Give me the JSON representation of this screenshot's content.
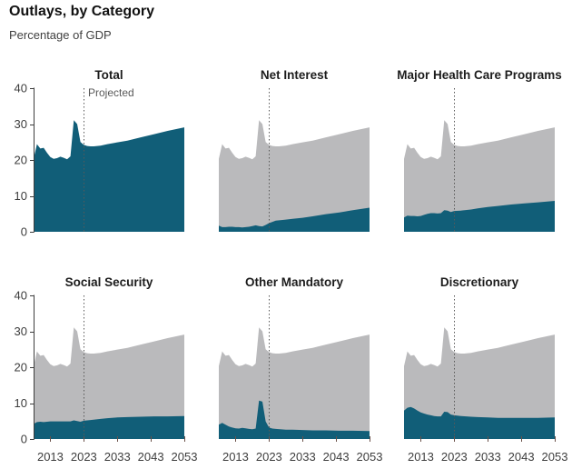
{
  "header": {
    "title": "Outlays, by Category",
    "subtitle": "Percentage of GDP"
  },
  "colors": {
    "category_area": "#115E78",
    "total_area": "#BABABC",
    "axis": "#3D3D3D",
    "tick_label": "#3D3D3D",
    "x_tick": "#6A5048",
    "dotted_line": "#595959",
    "panel_title": "#1C1C1C",
    "projected_label": "#595959",
    "page_title": "#111111",
    "subtitle": "#404040",
    "background": "#FFFFFF"
  },
  "chart_data": {
    "type": "area",
    "title": "Outlays, by Category",
    "ylabel": "Percentage of GDP",
    "x_range": [
      2008,
      2053
    ],
    "y_range": [
      0,
      40
    ],
    "x_ticks": [
      2013,
      2023,
      2033,
      2043,
      2053
    ],
    "y_ticks": [
      0,
      10,
      20,
      30,
      40
    ],
    "grid": false,
    "projected_year": 2023,
    "projected_label": "Projected",
    "total_outlays_points": [
      [
        2008,
        20.3
      ],
      [
        2009,
        24.4
      ],
      [
        2010,
        23.2
      ],
      [
        2011,
        23.4
      ],
      [
        2012,
        22.0
      ],
      [
        2013,
        20.8
      ],
      [
        2014,
        20.3
      ],
      [
        2015,
        20.5
      ],
      [
        2016,
        20.9
      ],
      [
        2017,
        20.6
      ],
      [
        2018,
        20.2
      ],
      [
        2019,
        21.0
      ],
      [
        2020,
        31.1
      ],
      [
        2021,
        30.0
      ],
      [
        2022,
        25.0
      ],
      [
        2023,
        24.2
      ],
      [
        2024,
        23.9
      ],
      [
        2025,
        23.8
      ],
      [
        2026,
        23.8
      ],
      [
        2028,
        24.0
      ],
      [
        2030,
        24.4
      ],
      [
        2033,
        24.9
      ],
      [
        2036,
        25.4
      ],
      [
        2040,
        26.3
      ],
      [
        2044,
        27.2
      ],
      [
        2048,
        28.1
      ],
      [
        2053,
        29.1
      ]
    ],
    "panels": [
      {
        "title": "Total",
        "category": "total",
        "show_y_axis": true,
        "show_x_labels": false,
        "show_total_background": false
      },
      {
        "title": "Net Interest",
        "category": "net_interest",
        "show_y_axis": false,
        "show_x_labels": false,
        "show_total_background": true,
        "category_points": [
          [
            2008,
            1.7
          ],
          [
            2009,
            1.3
          ],
          [
            2010,
            1.3
          ],
          [
            2011,
            1.4
          ],
          [
            2012,
            1.4
          ],
          [
            2013,
            1.3
          ],
          [
            2014,
            1.3
          ],
          [
            2015,
            1.2
          ],
          [
            2016,
            1.3
          ],
          [
            2017,
            1.4
          ],
          [
            2018,
            1.6
          ],
          [
            2019,
            1.8
          ],
          [
            2020,
            1.6
          ],
          [
            2021,
            1.5
          ],
          [
            2022,
            1.9
          ],
          [
            2023,
            2.4
          ],
          [
            2025,
            3.1
          ],
          [
            2028,
            3.4
          ],
          [
            2030,
            3.6
          ],
          [
            2033,
            3.9
          ],
          [
            2036,
            4.3
          ],
          [
            2040,
            4.9
          ],
          [
            2044,
            5.4
          ],
          [
            2048,
            6.0
          ],
          [
            2053,
            6.7
          ]
        ]
      },
      {
        "title": "Major Health Care Programs",
        "category": "major_health_care_programs",
        "show_y_axis": false,
        "show_x_labels": false,
        "show_total_background": true,
        "category_points": [
          [
            2008,
            4.0
          ],
          [
            2009,
            4.5
          ],
          [
            2010,
            4.4
          ],
          [
            2011,
            4.4
          ],
          [
            2012,
            4.3
          ],
          [
            2013,
            4.4
          ],
          [
            2014,
            4.7
          ],
          [
            2015,
            5.0
          ],
          [
            2016,
            5.2
          ],
          [
            2017,
            5.2
          ],
          [
            2018,
            5.1
          ],
          [
            2019,
            5.2
          ],
          [
            2020,
            6.0
          ],
          [
            2021,
            5.9
          ],
          [
            2022,
            5.5
          ],
          [
            2023,
            5.8
          ],
          [
            2025,
            5.9
          ],
          [
            2028,
            6.2
          ],
          [
            2030,
            6.5
          ],
          [
            2033,
            6.9
          ],
          [
            2036,
            7.2
          ],
          [
            2040,
            7.6
          ],
          [
            2044,
            7.9
          ],
          [
            2048,
            8.2
          ],
          [
            2053,
            8.6
          ]
        ]
      },
      {
        "title": "Social Security",
        "category": "social_security",
        "show_y_axis": true,
        "show_x_labels": true,
        "show_total_background": true,
        "category_points": [
          [
            2008,
            4.2
          ],
          [
            2009,
            4.7
          ],
          [
            2010,
            4.8
          ],
          [
            2011,
            4.7
          ],
          [
            2012,
            4.8
          ],
          [
            2013,
            4.9
          ],
          [
            2014,
            4.9
          ],
          [
            2015,
            4.9
          ],
          [
            2016,
            4.9
          ],
          [
            2017,
            4.9
          ],
          [
            2018,
            4.9
          ],
          [
            2019,
            4.9
          ],
          [
            2020,
            5.2
          ],
          [
            2021,
            5.0
          ],
          [
            2022,
            4.8
          ],
          [
            2023,
            5.1
          ],
          [
            2025,
            5.3
          ],
          [
            2028,
            5.6
          ],
          [
            2030,
            5.8
          ],
          [
            2033,
            6.0
          ],
          [
            2036,
            6.1
          ],
          [
            2040,
            6.2
          ],
          [
            2044,
            6.3
          ],
          [
            2048,
            6.3
          ],
          [
            2053,
            6.4
          ]
        ]
      },
      {
        "title": "Other Mandatory",
        "category": "other_mandatory",
        "show_y_axis": false,
        "show_x_labels": true,
        "show_total_background": true,
        "category_points": [
          [
            2008,
            4.0
          ],
          [
            2009,
            4.5
          ],
          [
            2010,
            4.0
          ],
          [
            2011,
            3.5
          ],
          [
            2012,
            3.2
          ],
          [
            2013,
            3.0
          ],
          [
            2014,
            2.9
          ],
          [
            2015,
            3.1
          ],
          [
            2016,
            3.0
          ],
          [
            2017,
            2.8
          ],
          [
            2018,
            2.7
          ],
          [
            2019,
            2.9
          ],
          [
            2020,
            10.7
          ],
          [
            2021,
            10.4
          ],
          [
            2022,
            4.9
          ],
          [
            2023,
            3.2
          ],
          [
            2024,
            2.9
          ],
          [
            2025,
            2.8
          ],
          [
            2028,
            2.6
          ],
          [
            2030,
            2.6
          ],
          [
            2033,
            2.5
          ],
          [
            2036,
            2.4
          ],
          [
            2040,
            2.4
          ],
          [
            2044,
            2.3
          ],
          [
            2048,
            2.3
          ],
          [
            2053,
            2.2
          ]
        ]
      },
      {
        "title": "Discretionary",
        "category": "discretionary",
        "show_y_axis": false,
        "show_x_labels": true,
        "show_total_background": true,
        "category_points": [
          [
            2008,
            7.9
          ],
          [
            2009,
            8.7
          ],
          [
            2010,
            8.9
          ],
          [
            2011,
            8.5
          ],
          [
            2012,
            7.9
          ],
          [
            2013,
            7.4
          ],
          [
            2014,
            7.1
          ],
          [
            2015,
            6.8
          ],
          [
            2016,
            6.6
          ],
          [
            2017,
            6.4
          ],
          [
            2018,
            6.3
          ],
          [
            2019,
            6.3
          ],
          [
            2020,
            7.6
          ],
          [
            2021,
            7.5
          ],
          [
            2022,
            6.8
          ],
          [
            2023,
            6.6
          ],
          [
            2025,
            6.4
          ],
          [
            2028,
            6.2
          ],
          [
            2030,
            6.1
          ],
          [
            2033,
            6.0
          ],
          [
            2036,
            5.9
          ],
          [
            2040,
            5.9
          ],
          [
            2044,
            5.9
          ],
          [
            2048,
            5.9
          ],
          [
            2053,
            6.0
          ]
        ]
      }
    ]
  }
}
